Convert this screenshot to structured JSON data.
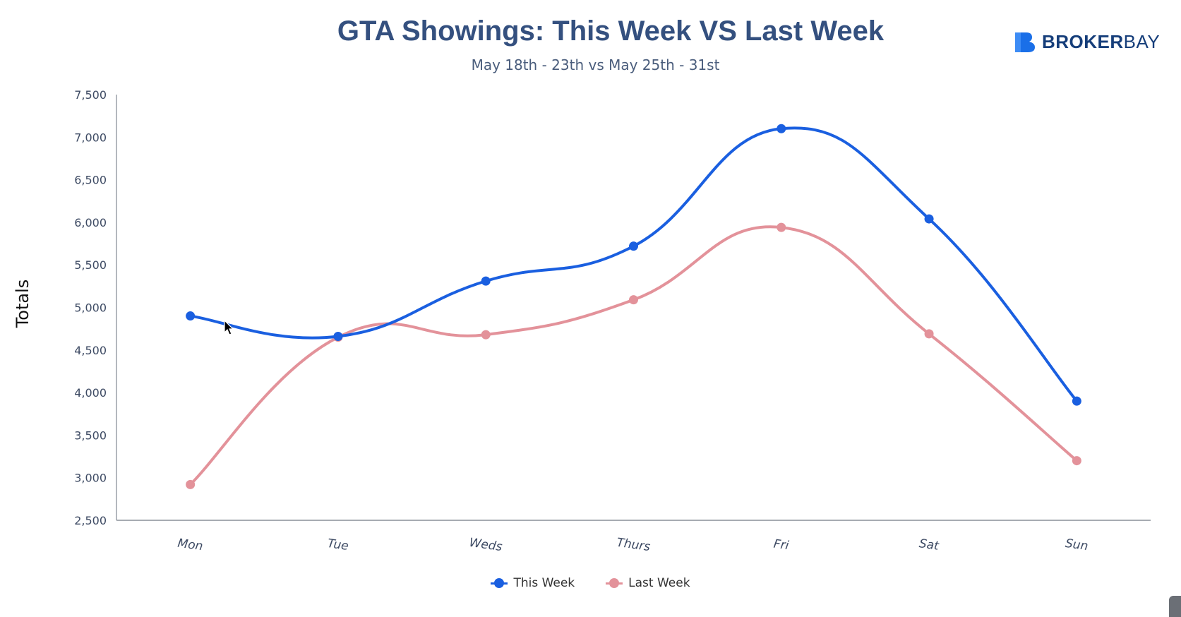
{
  "header": {
    "title": "GTA Showings: This Week VS Last Week",
    "subtitle": "May 18th - 23th vs May 25th - 31st"
  },
  "logo": {
    "text_bold": "BROKER",
    "text_light": "BAY",
    "color": "#1a6fe8"
  },
  "chart_data": {
    "type": "line",
    "title": "GTA Showings: This Week VS Last Week",
    "subtitle": "May 18th - 23th vs May 25th - 31st",
    "xlabel": "",
    "ylabel": "Totals",
    "categories": [
      "Mon",
      "Tue",
      "Weds",
      "Thurs",
      "Fri",
      "Sat",
      "Sun"
    ],
    "ylim": [
      2500,
      7500
    ],
    "yticks": [
      2500,
      3000,
      3500,
      4000,
      4500,
      5000,
      5500,
      6000,
      6500,
      7000,
      7500
    ],
    "ytick_labels": [
      "2,500",
      "3,000",
      "3,500",
      "4,000",
      "4,500",
      "5,000",
      "5,500",
      "6,000",
      "6,500",
      "7,000",
      "7,500"
    ],
    "grid": false,
    "legend_position": "bottom-center",
    "series": [
      {
        "name": "This Week",
        "color": "#1a5fe0",
        "values": [
          4900,
          4660,
          5310,
          5720,
          7100,
          6040,
          3900
        ]
      },
      {
        "name": "Last Week",
        "color": "#e3929a",
        "values": [
          2920,
          4650,
          4680,
          5090,
          5940,
          4690,
          3200
        ]
      }
    ]
  }
}
